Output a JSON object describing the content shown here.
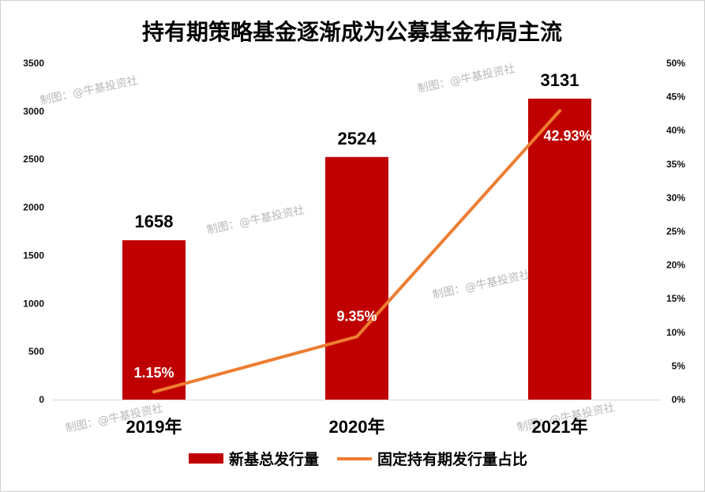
{
  "chart_data": {
    "type": "bar",
    "title": "持有期策略基金逐渐成为公募基金布局主流",
    "categories": [
      "2019年",
      "2020年",
      "2021年"
    ],
    "series": [
      {
        "name": "新基总发行量",
        "type": "bar",
        "axis": "left",
        "values": [
          1658,
          2524,
          3131
        ],
        "labels": [
          "1658",
          "2524",
          "3131"
        ]
      },
      {
        "name": "固定持有期发行量占比",
        "type": "line",
        "axis": "right",
        "values": [
          1.15,
          9.35,
          42.93
        ],
        "labels": [
          "1.15%",
          "9.35%",
          "42.93%"
        ]
      }
    ],
    "y_left": {
      "range": [
        0,
        3500
      ],
      "ticks": [
        "0",
        "500",
        "1000",
        "1500",
        "2000",
        "2500",
        "3000",
        "3500"
      ]
    },
    "y_right": {
      "range": [
        0,
        50
      ],
      "ticks": [
        "0%",
        "5%",
        "10%",
        "15%",
        "20%",
        "25%",
        "30%",
        "35%",
        "40%",
        "45%",
        "50%"
      ]
    },
    "legend_position": "bottom",
    "grid": false,
    "colors": {
      "bar": "#C00000",
      "line": "#ED7D31"
    }
  },
  "watermark": "制图：@牛基投资社"
}
